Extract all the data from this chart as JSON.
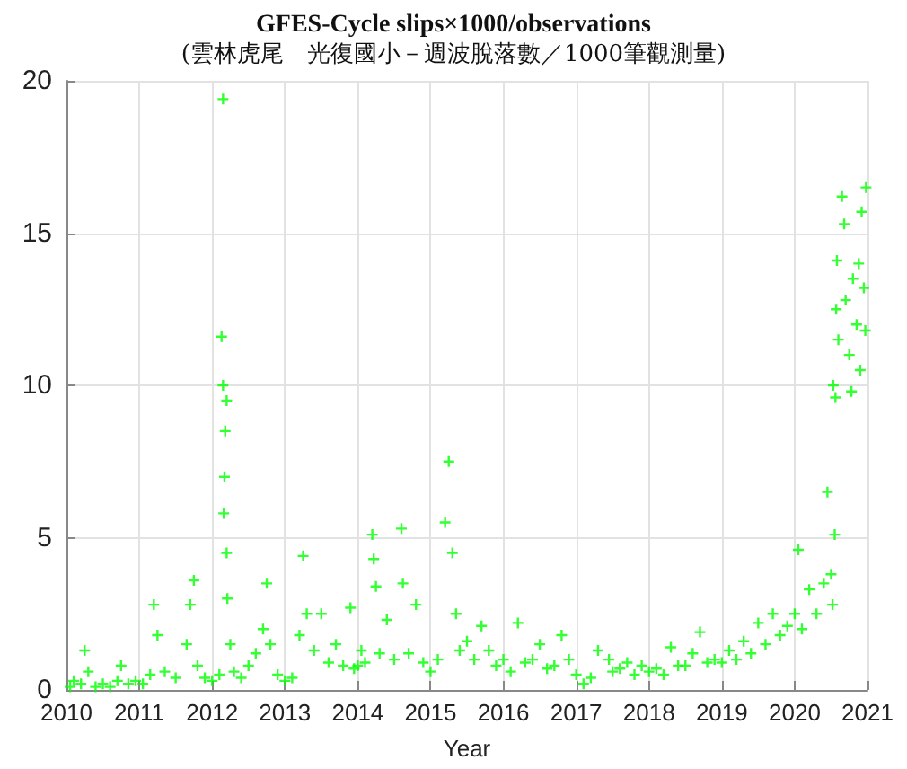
{
  "chart_data": {
    "type": "scatter",
    "title": "GFES-Cycle slips×1000/observations",
    "subtitle": "(雲林虎尾　光復國小－週波脫落數／1000筆觀測量)",
    "xlabel": "Year",
    "x": [
      2010.05,
      2010.1,
      2010.2,
      2010.25,
      2010.3,
      2010.4,
      2010.5,
      2010.6,
      2010.7,
      2010.75,
      2010.85,
      2010.95,
      2011.05,
      2011.15,
      2011.2,
      2011.25,
      2011.35,
      2011.5,
      2011.65,
      2011.7,
      2011.75,
      2011.8,
      2011.9,
      2012.0,
      2012.1,
      2012.15,
      2012.13,
      2012.15,
      2012.2,
      2012.18,
      2012.17,
      2012.16,
      2012.2,
      2012.21,
      2012.25,
      2012.3,
      2012.4,
      2012.5,
      2012.6,
      2012.7,
      2012.75,
      2012.8,
      2012.9,
      2013.0,
      2013.1,
      2013.2,
      2013.25,
      2013.3,
      2013.4,
      2013.5,
      2013.6,
      2013.7,
      2013.8,
      2013.9,
      2013.95,
      2014.0,
      2014.05,
      2014.1,
      2014.2,
      2014.22,
      2014.25,
      2014.3,
      2014.4,
      2014.5,
      2014.6,
      2014.62,
      2014.7,
      2014.8,
      2014.9,
      2015.0,
      2015.1,
      2015.2,
      2015.25,
      2015.3,
      2015.35,
      2015.4,
      2015.5,
      2015.6,
      2015.7,
      2015.8,
      2015.9,
      2016.0,
      2016.1,
      2016.2,
      2016.3,
      2016.4,
      2016.5,
      2016.6,
      2016.7,
      2016.8,
      2016.9,
      2017.0,
      2017.1,
      2017.2,
      2017.3,
      2017.45,
      2017.5,
      2017.6,
      2017.7,
      2017.8,
      2017.9,
      2018.0,
      2018.1,
      2018.2,
      2018.3,
      2018.4,
      2018.5,
      2018.6,
      2018.7,
      2018.8,
      2018.9,
      2019.0,
      2019.1,
      2019.2,
      2019.3,
      2019.4,
      2019.5,
      2019.6,
      2019.7,
      2019.8,
      2019.9,
      2020.0,
      2020.05,
      2020.1,
      2020.2,
      2020.3,
      2020.4,
      2020.45,
      2020.5,
      2020.55,
      2020.52,
      2020.53,
      2020.56,
      2020.57,
      2020.58,
      2020.6,
      2020.65,
      2020.7,
      2020.68,
      2020.75,
      2020.78,
      2020.8,
      2020.85,
      2020.88,
      2020.9,
      2020.92,
      2020.95,
      2020.98,
      2020.97
    ],
    "values": [
      0.1,
      0.3,
      0.2,
      1.3,
      0.6,
      0.1,
      0.2,
      0.1,
      0.3,
      0.8,
      0.2,
      0.3,
      0.2,
      0.5,
      2.8,
      1.8,
      0.6,
      0.4,
      1.5,
      2.8,
      3.6,
      0.8,
      0.4,
      0.3,
      0.5,
      19.4,
      11.6,
      10.0,
      9.5,
      8.5,
      7.0,
      5.8,
      4.5,
      3.0,
      1.5,
      0.6,
      0.4,
      0.8,
      1.2,
      2.0,
      3.5,
      1.5,
      0.5,
      0.3,
      0.4,
      1.8,
      4.4,
      2.5,
      1.3,
      2.5,
      0.9,
      1.5,
      0.8,
      2.7,
      0.7,
      0.8,
      1.3,
      0.9,
      5.1,
      4.3,
      3.4,
      1.2,
      2.3,
      1.0,
      5.3,
      3.5,
      1.2,
      2.8,
      0.9,
      0.6,
      1.0,
      5.5,
      7.5,
      4.5,
      2.5,
      1.3,
      1.6,
      1.0,
      2.1,
      1.3,
      0.8,
      1.0,
      0.6,
      2.2,
      0.9,
      1.0,
      1.5,
      0.7,
      0.8,
      1.8,
      1.0,
      0.5,
      0.2,
      0.4,
      1.3,
      1.0,
      0.6,
      0.7,
      0.9,
      0.5,
      0.8,
      0.6,
      0.7,
      0.5,
      1.4,
      0.8,
      0.8,
      1.2,
      1.9,
      0.9,
      1.0,
      0.9,
      1.3,
      1.0,
      1.6,
      1.2,
      2.2,
      1.5,
      2.5,
      1.8,
      2.1,
      2.5,
      4.6,
      2.0,
      3.3,
      2.5,
      3.5,
      6.5,
      3.8,
      5.1,
      2.8,
      10.0,
      9.6,
      12.5,
      14.1,
      11.5,
      16.2,
      12.8,
      15.3,
      11.0,
      9.8,
      13.5,
      12.0,
      14.0,
      10.5,
      15.7,
      13.2,
      16.5,
      11.8
    ],
    "color": "#00ff00",
    "marker": "cross",
    "grid": true,
    "xlim": [
      2010,
      2021
    ],
    "xticks": [
      2010,
      2011,
      2012,
      2013,
      2014,
      2015,
      2016,
      2017,
      2018,
      2019,
      2020,
      2021
    ],
    "ylim": [
      0,
      20
    ],
    "yticks": [
      0,
      5,
      10,
      15,
      20
    ]
  }
}
